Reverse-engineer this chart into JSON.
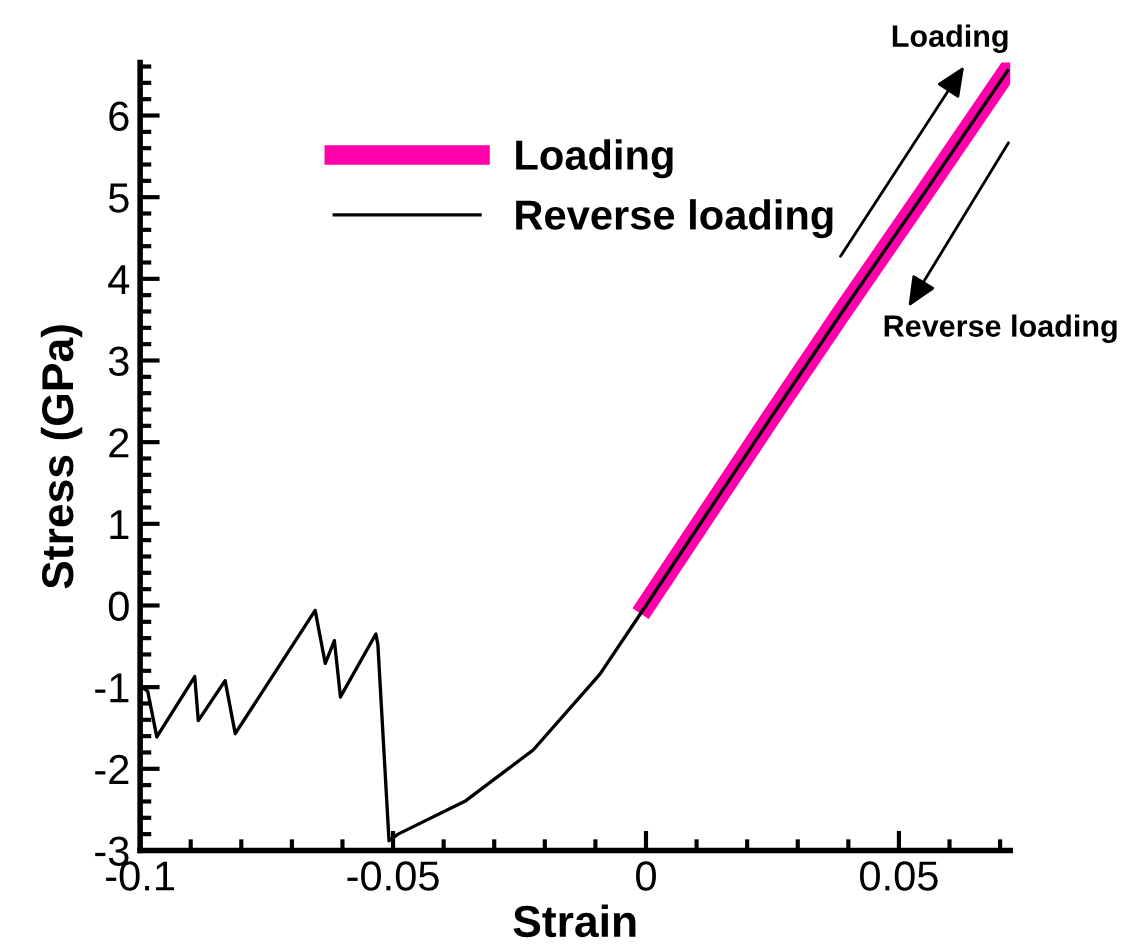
{
  "chart_data": {
    "type": "line",
    "xlabel": "Strain",
    "ylabel": "Stress (GPa)",
    "xlim": [
      -0.1,
      0.072
    ],
    "xticks": [
      -0.1,
      -0.05,
      0,
      0.05
    ],
    "ylim": [
      -3,
      6.65
    ],
    "yticks": [
      -3,
      -2,
      -1,
      0,
      1,
      2,
      3,
      4,
      5,
      6
    ],
    "grid": false,
    "legend": "top left",
    "marker": "none",
    "line_style": "solid",
    "series": [
      {
        "name": "Loading",
        "color": "#ff00aa",
        "x": [
          0,
          0.012,
          0.025,
          0.0385,
          0.055,
          0.0715
        ],
        "values": [
          0,
          1.12,
          2.33,
          3.57,
          5.05,
          6.55
        ]
      },
      {
        "name": "Reverse loading",
        "color": "#000000",
        "x": [
          0.0715,
          0.055,
          0.0385,
          0.025,
          0.012,
          0,
          -0.0091,
          -0.0223,
          -0.0356,
          -0.049,
          -0.0508,
          -0.053,
          -0.0534,
          -0.0604,
          -0.0616,
          -0.0634,
          -0.0654,
          -0.0812,
          -0.0832,
          -0.0885,
          -0.0892,
          -0.0967,
          -0.0985,
          -0.0997
        ],
        "values": [
          6.55,
          5.05,
          3.57,
          2.33,
          1.12,
          0,
          -0.84,
          -1.77,
          -2.39,
          -2.8,
          -2.88,
          -0.48,
          -0.35,
          -1.12,
          -0.43,
          -0.71,
          -0.06,
          -1.57,
          -0.92,
          -1.41,
          -0.87,
          -1.61,
          -1.05,
          -1.0
        ]
      }
    ],
    "annotations": [
      "Loading",
      "Reverse loading"
    ]
  }
}
